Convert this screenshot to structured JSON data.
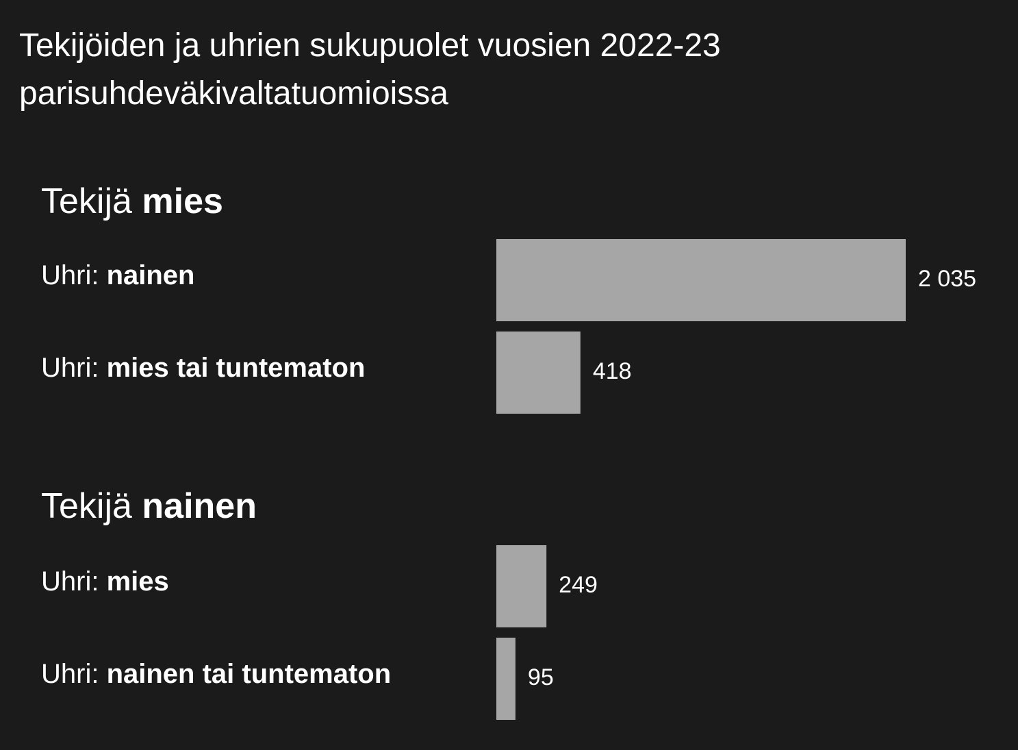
{
  "chart_data": {
    "type": "bar",
    "title": "Tekijöiden ja uhrien sukupuolet vuosien 2022-23 parisuhdeväkivaltatuomioissa",
    "color": "#a6a6a6",
    "groups": [
      {
        "prefix": "Tekijä",
        "name": "mies",
        "categories": [
          {
            "prefix": "Uhri:",
            "label": "nainen"
          },
          {
            "prefix": "Uhri:",
            "label": "mies tai tuntematon"
          }
        ],
        "values": [
          2035,
          418
        ],
        "value_labels": [
          "2 035",
          "418"
        ]
      },
      {
        "prefix": "Tekijä",
        "name": "nainen",
        "categories": [
          {
            "prefix": "Uhri:",
            "label": "mies"
          },
          {
            "prefix": "Uhri:",
            "label": "nainen tai tuntematon"
          }
        ],
        "values": [
          249,
          95
        ],
        "value_labels": [
          "249",
          "95"
        ]
      }
    ]
  }
}
